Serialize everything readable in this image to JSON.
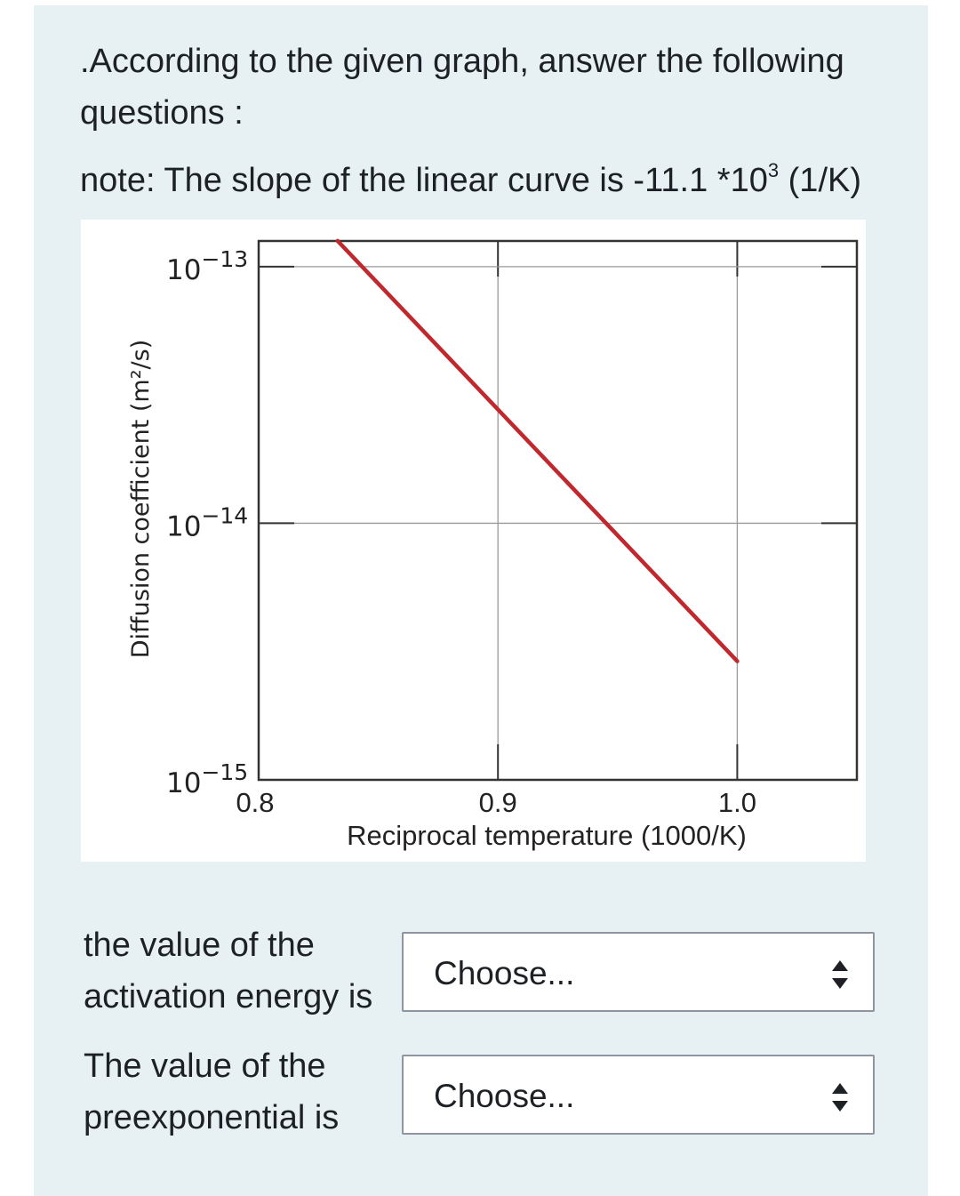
{
  "question": {
    "line1": ".According to the given graph, answer the following",
    "line2": "questions :"
  },
  "note": {
    "prefix": "note: The slope of the linear curve is -11.1 *10",
    "exponent": "3",
    "suffix": " (1/K)"
  },
  "chart_data": {
    "type": "line",
    "xlabel": "Reciprocal temperature (1000/K)",
    "ylabel": "Diffusion coefficient (m²/s)",
    "xlim": [
      0.8,
      1.05
    ],
    "ylim_log10": [
      -15,
      -12.9
    ],
    "yscale": "log",
    "grid": true,
    "x_ticks": [
      {
        "value": 0.8,
        "label": "0.8"
      },
      {
        "value": 0.9,
        "label": "0.9"
      },
      {
        "value": 1.0,
        "label": "1.0"
      }
    ],
    "y_ticks": [
      {
        "exp": -13,
        "base": "10",
        "label": "−13"
      },
      {
        "exp": -14,
        "base": "10",
        "label": "−14"
      },
      {
        "exp": -15,
        "base": "10",
        "label": "−15"
      }
    ],
    "series": [
      {
        "color": "#c0282d",
        "x": [
          0.833,
          1.0
        ],
        "y": [
          1.26e-13,
          2.9e-15
        ]
      }
    ]
  },
  "answers": [
    {
      "label_line1": "the value of the",
      "label_line2": "activation energy is",
      "selected": "Choose..."
    },
    {
      "label_line1": "The value of the",
      "label_line2": "preexponential is",
      "selected": "Choose..."
    }
  ]
}
